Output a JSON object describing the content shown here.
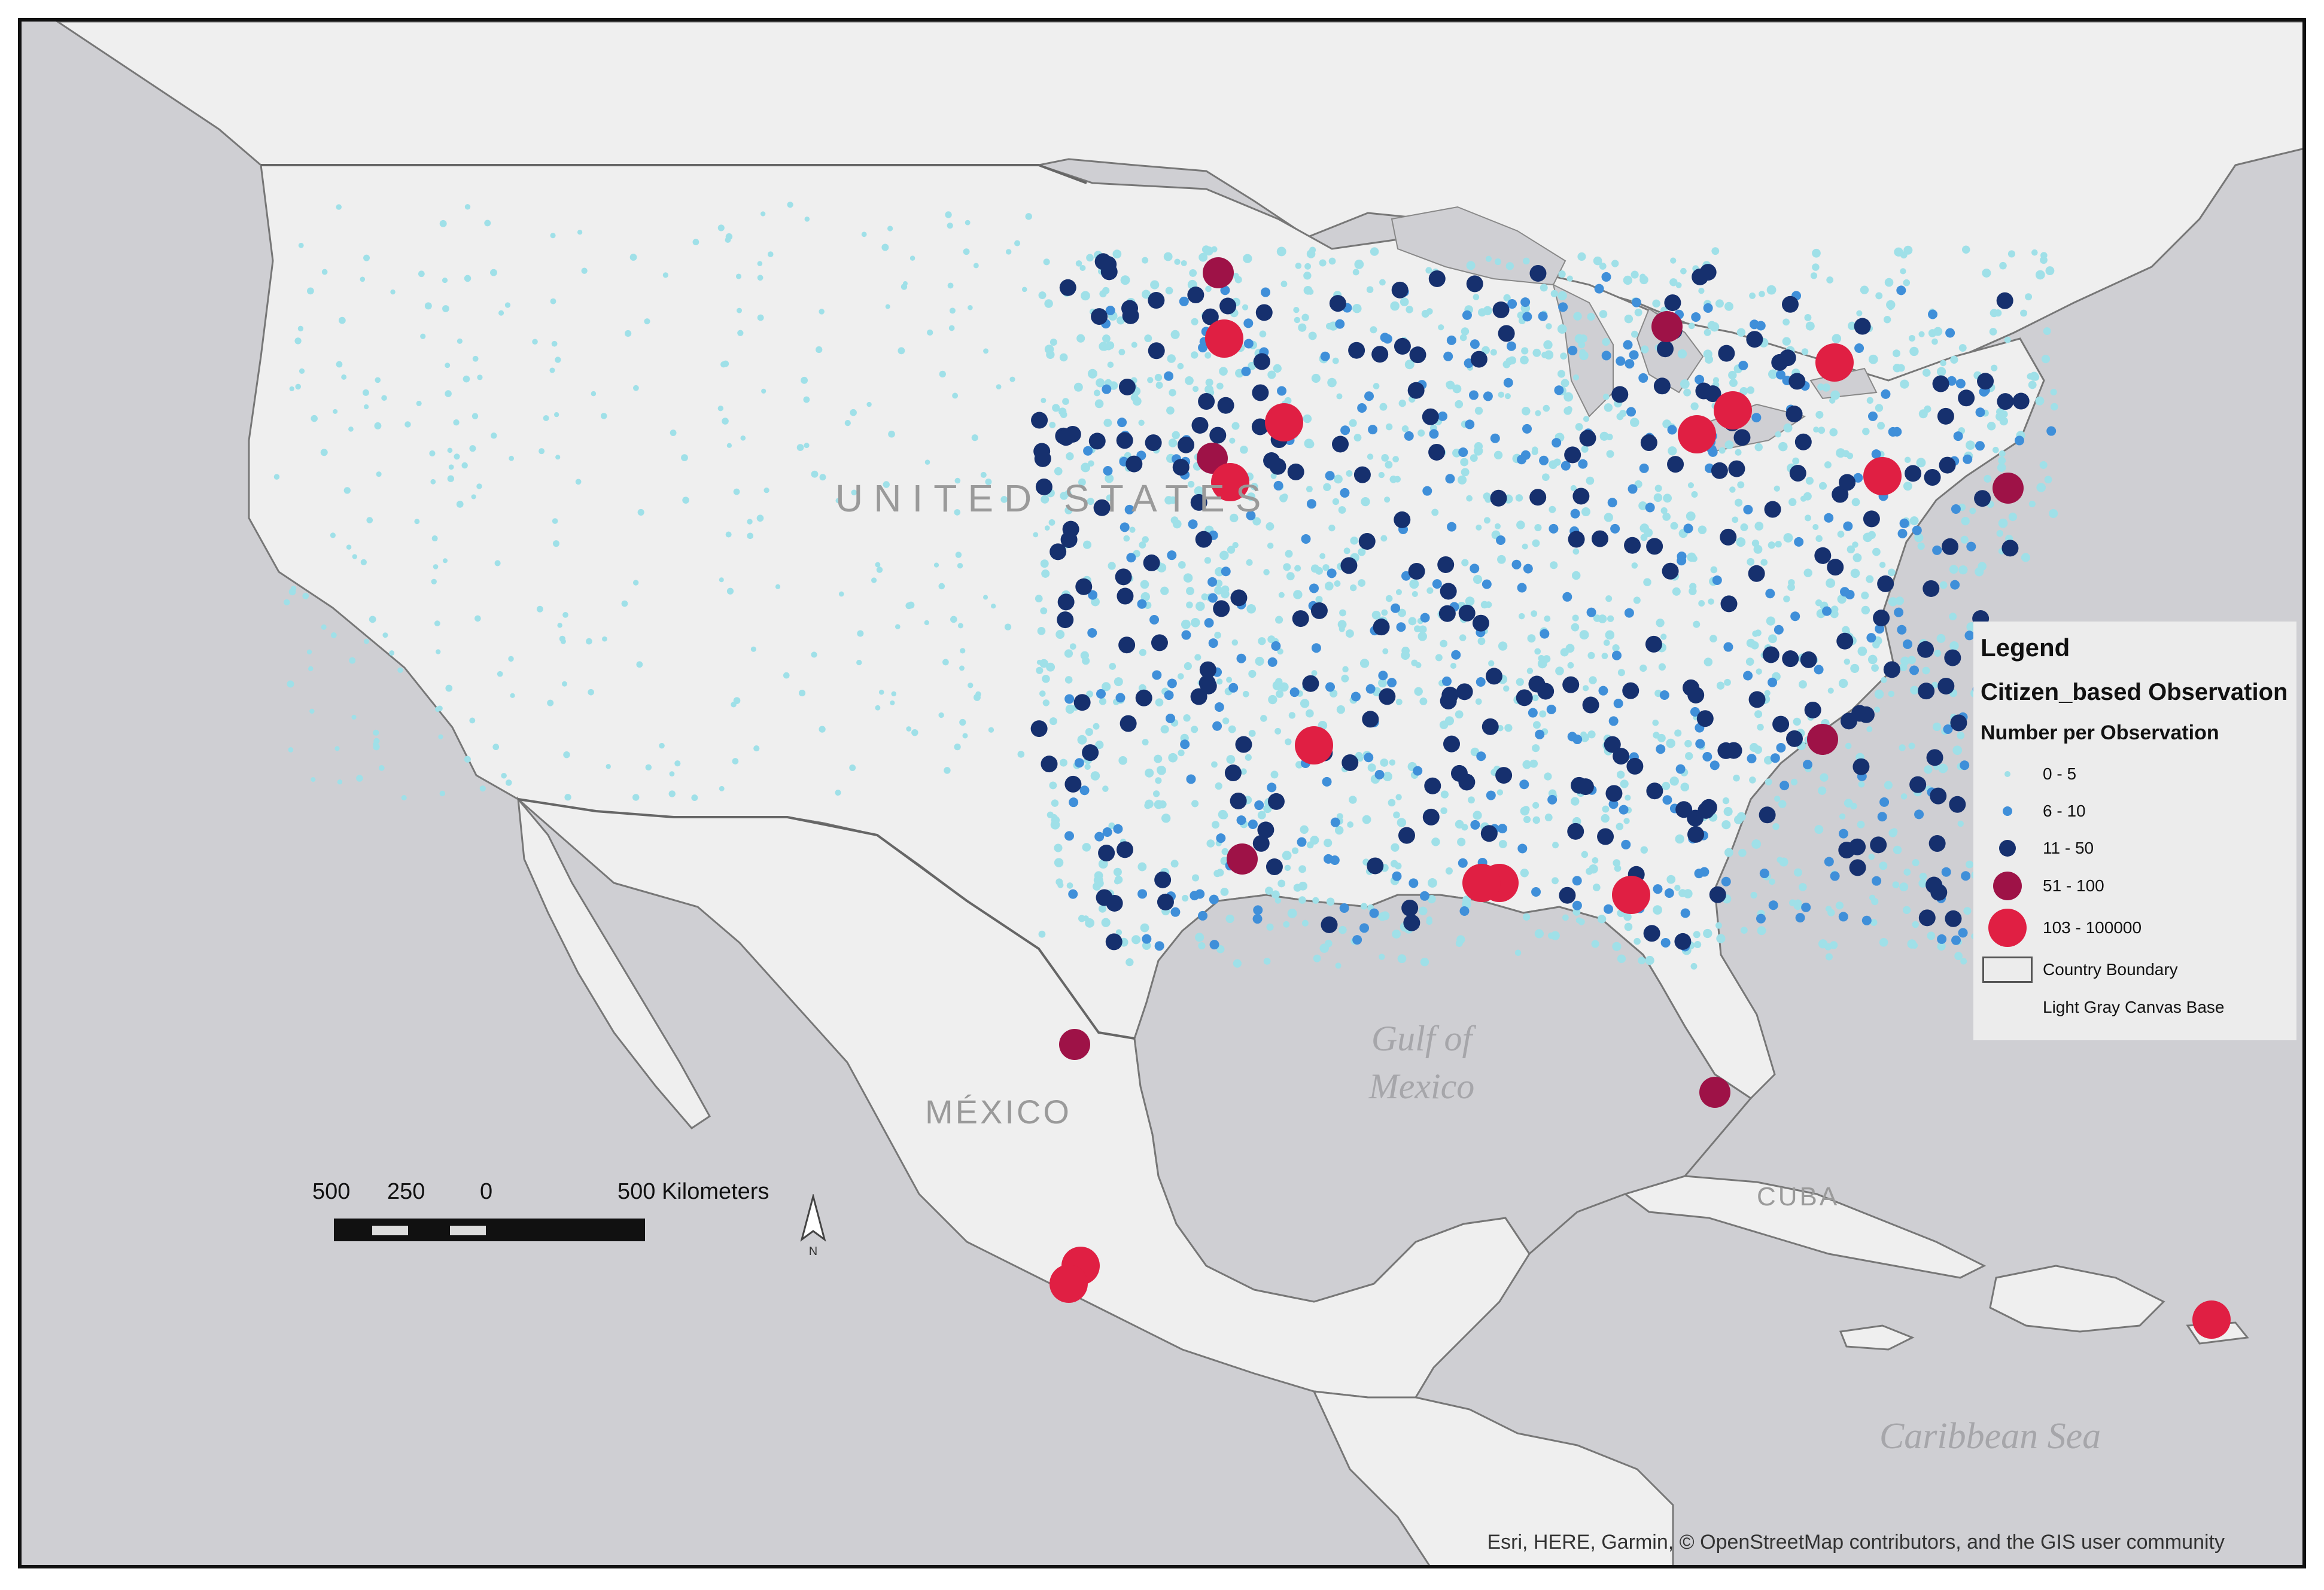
{
  "map": {
    "country_labels": [
      "UNITED STATES",
      "MÉXICO",
      "CUBA"
    ],
    "sea_labels": [
      "Gulf of Mexico",
      "Caribbean Sea"
    ],
    "attribution": "Esri, HERE, Garmin, © OpenStreetMap contributors, and the GIS user community"
  },
  "legend": {
    "title": "Legend",
    "layer": "Citizen_based Observation",
    "field": "Number per Observation",
    "classes": [
      {
        "label": "0 - 5",
        "color": "#9fe0e8"
      },
      {
        "label": "6 - 10",
        "color": "#3f8fd9"
      },
      {
        "label": "11 - 50",
        "color": "#16306e"
      },
      {
        "label": "51 - 100",
        "color": "#9e1247"
      },
      {
        "label": "103 - 100000",
        "color": "#e01f43"
      }
    ],
    "boundary_label": "Country Boundary",
    "basemap_label": "Light Gray Canvas Base"
  },
  "scale": {
    "ticks": [
      "500",
      "250",
      "0",
      "500 Kilometers"
    ]
  },
  "north_arrow": {
    "label": "N"
  },
  "colors": {
    "water": "#cfcfd3",
    "land": "#efefef",
    "boundary": "#6a6a6a"
  }
}
